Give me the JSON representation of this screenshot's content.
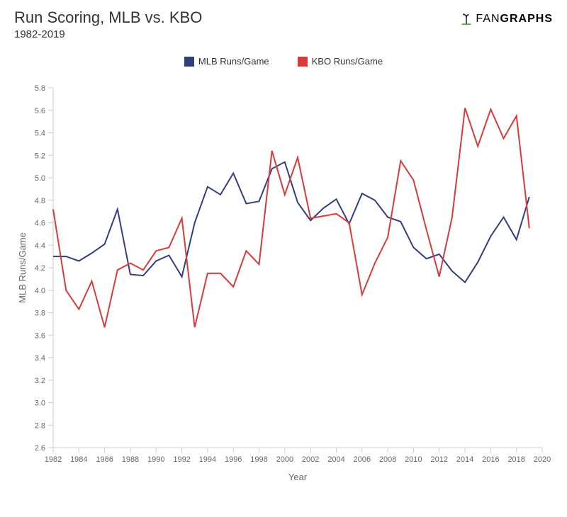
{
  "header": {
    "title": "Run Scoring, MLB vs. KBO",
    "subtitle": "1982-2019",
    "brand": "FANGRAPHS"
  },
  "chart": {
    "type": "line",
    "background_color": "#ffffff",
    "plot_border_color": "#cccccc",
    "tick_color": "#cccccc",
    "text_color": "#666666",
    "xlabel": "Year",
    "ylabel": "MLB Runs/Game",
    "label_fontsize": 13,
    "tick_fontsize": 11,
    "line_width": 2,
    "xlim": [
      1982,
      2020
    ],
    "ylim": [
      2.6,
      5.8
    ],
    "xtick_step": 2,
    "ytick_step": 0.2,
    "years": [
      1982,
      1983,
      1984,
      1985,
      1986,
      1987,
      1988,
      1989,
      1990,
      1991,
      1992,
      1993,
      1994,
      1995,
      1996,
      1997,
      1998,
      1999,
      2000,
      2001,
      2002,
      2003,
      2004,
      2005,
      2006,
      2007,
      2008,
      2009,
      2010,
      2011,
      2012,
      2013,
      2014,
      2015,
      2016,
      2017,
      2018,
      2019
    ],
    "series": [
      {
        "name": "mlb",
        "label": "MLB Runs/Game",
        "color": "#333f7d",
        "values": [
          4.3,
          4.3,
          4.26,
          4.33,
          4.41,
          4.72,
          4.14,
          4.13,
          4.26,
          4.31,
          4.12,
          4.6,
          4.92,
          4.85,
          5.04,
          4.77,
          4.79,
          5.08,
          5.14,
          4.78,
          4.62,
          4.73,
          4.81,
          4.59,
          4.86,
          4.8,
          4.65,
          4.61,
          4.38,
          4.28,
          4.32,
          4.17,
          4.07,
          4.25,
          4.48,
          4.65,
          4.45,
          4.83
        ]
      },
      {
        "name": "kbo",
        "label": "KBO Runs/Game",
        "color": "#d93a3a",
        "values": [
          4.72,
          4.0,
          3.83,
          4.08,
          3.67,
          4.18,
          4.24,
          4.18,
          4.35,
          4.38,
          4.64,
          3.67,
          4.15,
          4.15,
          4.03,
          4.35,
          4.23,
          5.24,
          4.85,
          5.18,
          4.64,
          4.66,
          4.68,
          4.6,
          3.96,
          4.24,
          4.47,
          5.15,
          4.98,
          4.54,
          4.12,
          4.65,
          5.62,
          5.28,
          5.61,
          5.35,
          5.55,
          4.55
        ]
      }
    ]
  }
}
